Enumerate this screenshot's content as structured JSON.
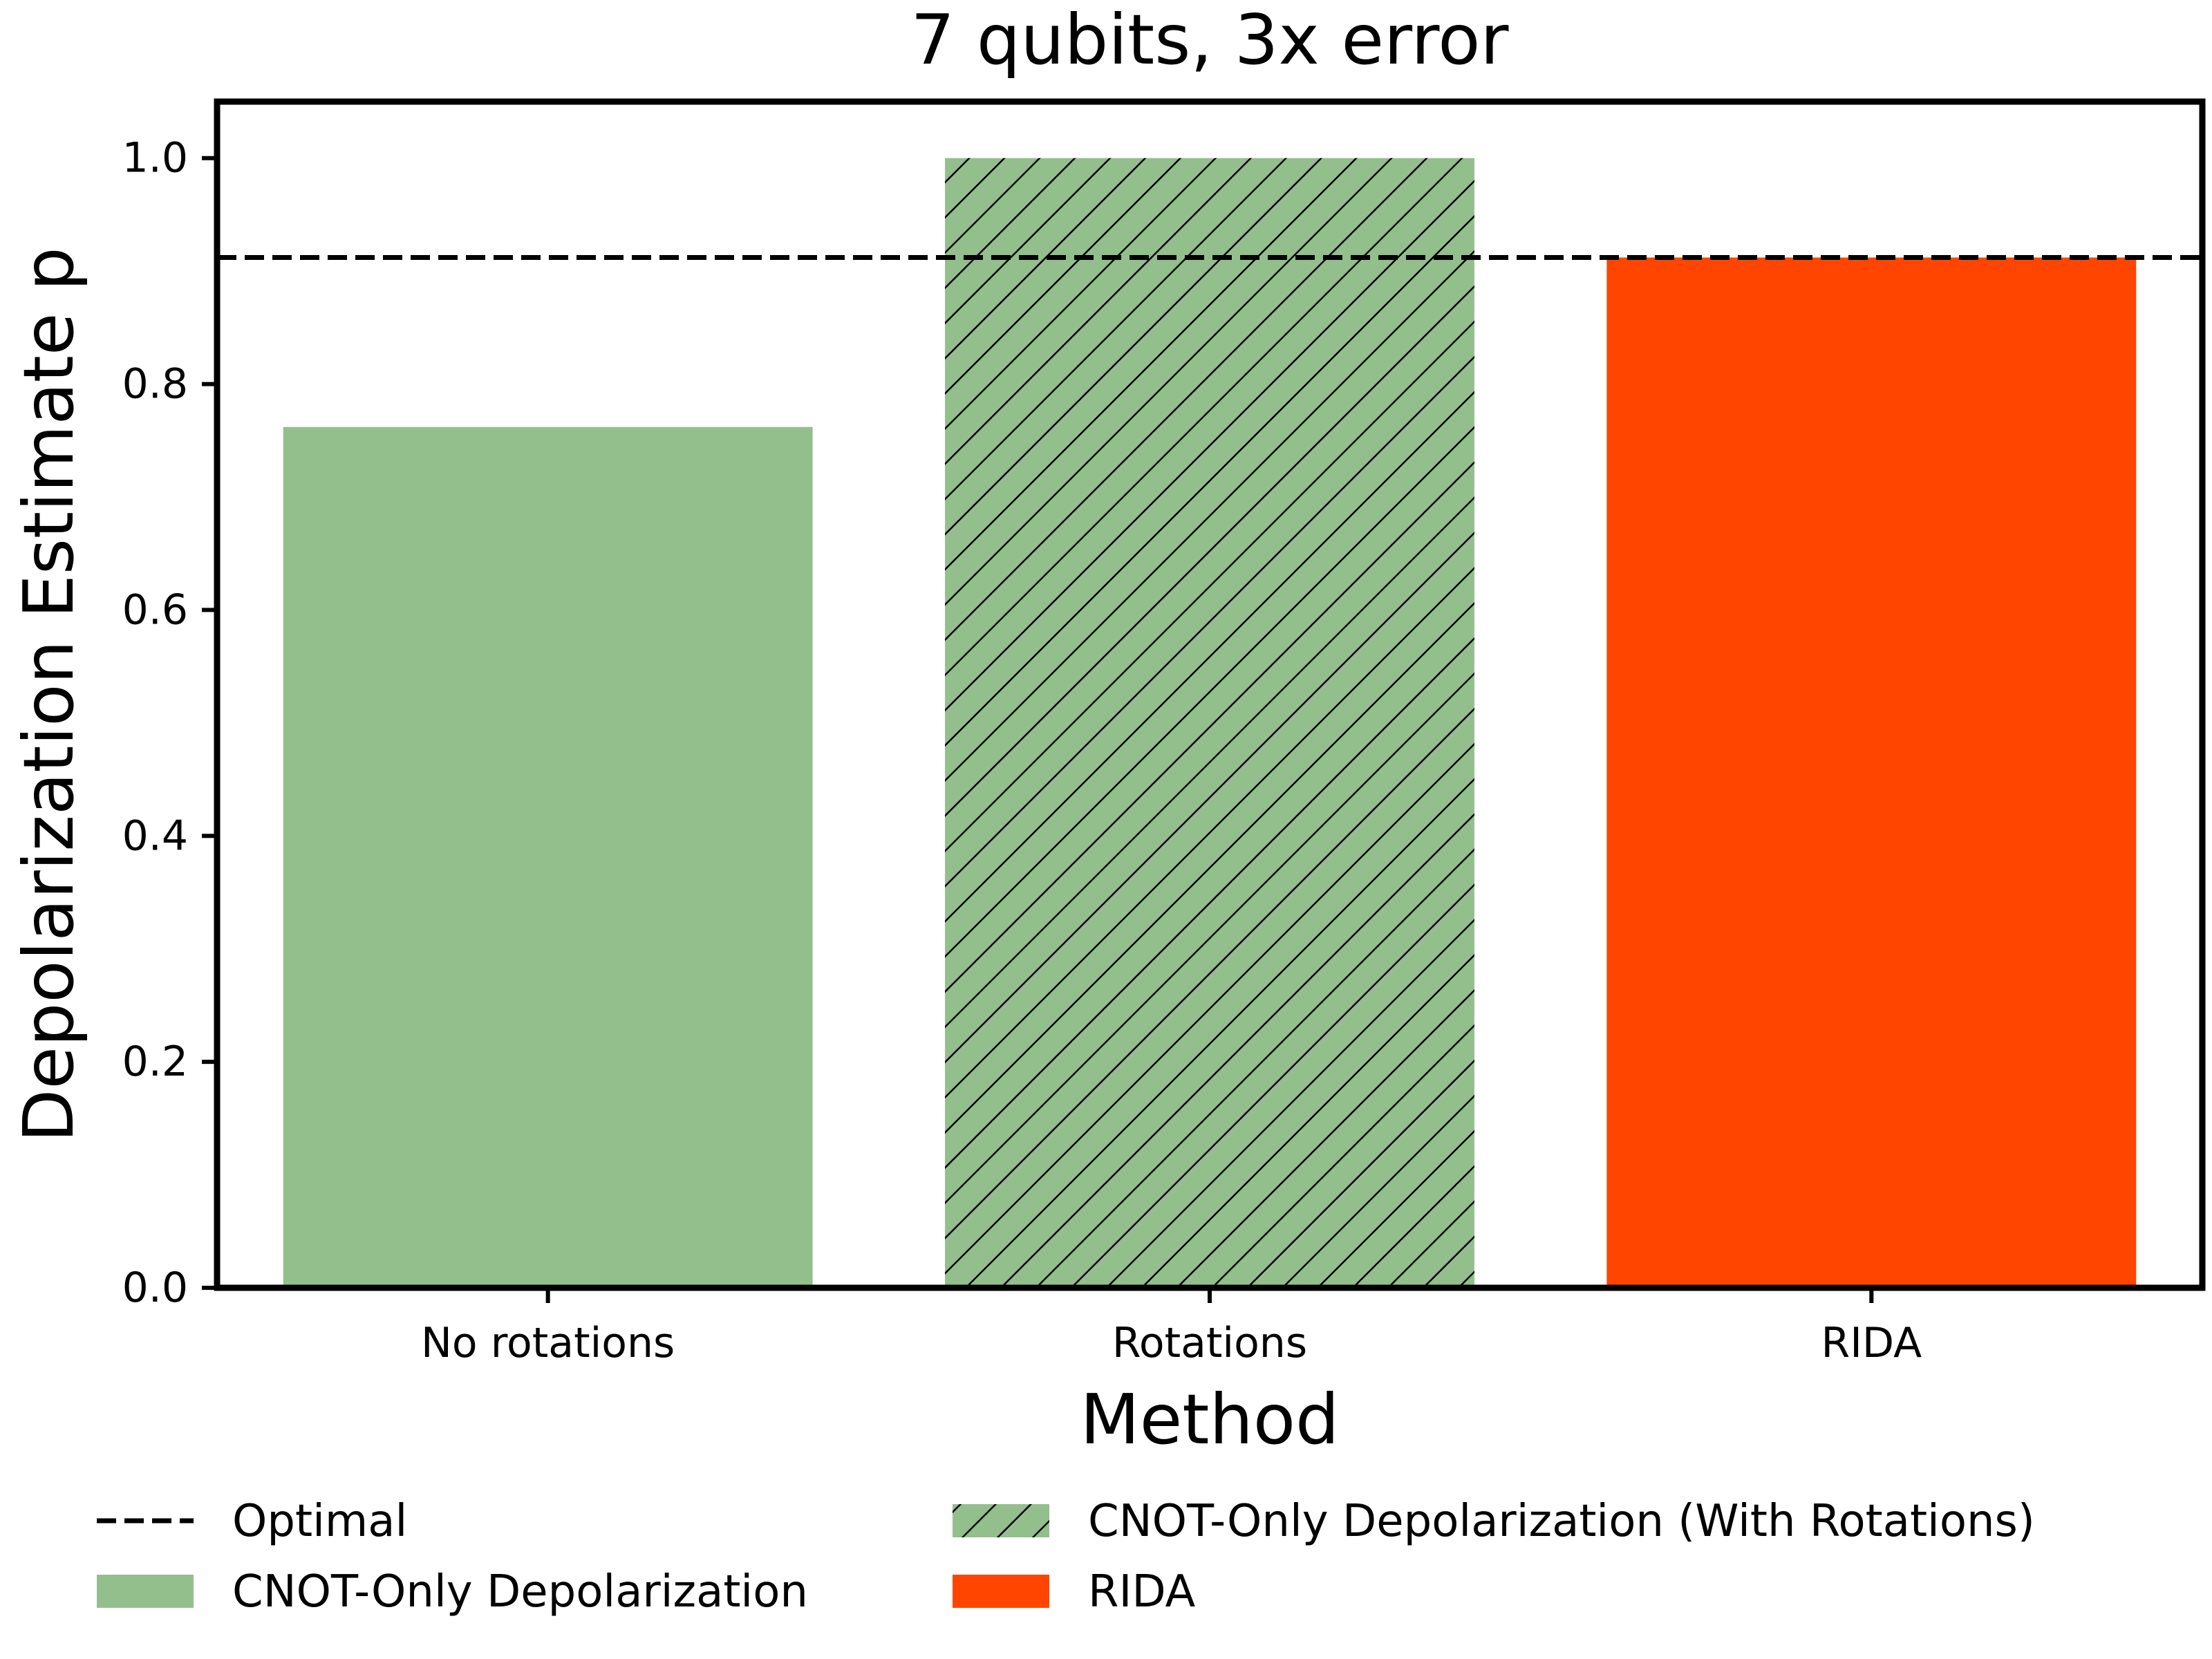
{
  "chart_data": {
    "type": "bar",
    "title": "7 qubits, 3x error",
    "xlabel": "Method",
    "ylabel": "Depolarization Estimate p",
    "categories": [
      "No rotations",
      "Rotations",
      "RIDA"
    ],
    "bars": [
      {
        "category": "No rotations",
        "value": 0.762,
        "series": "CNOT-Only Depolarization",
        "color": "#93bf8d",
        "hatch": false
      },
      {
        "category": "Rotations",
        "value": 1.0,
        "series": "CNOT-Only Depolarization (With Rotations)",
        "color": "#93bf8d",
        "hatch": true
      },
      {
        "category": "RIDA",
        "value": 0.912,
        "series": "RIDA",
        "color": "#ff4500",
        "hatch": false
      }
    ],
    "reference_line": {
      "name": "Optimal",
      "value": 0.912,
      "style": "dashed",
      "color": "#000000"
    },
    "ylim": [
      0,
      1.05
    ],
    "yticks": [
      0.0,
      0.2,
      0.4,
      0.6,
      0.8,
      1.0
    ],
    "ytick_labels": [
      "0.0",
      "0.2",
      "0.4",
      "0.6",
      "0.8",
      "1.0"
    ],
    "grid": false,
    "legend": {
      "placement": "bottom",
      "columns": 2,
      "entries": [
        {
          "label": "Optimal",
          "kind": "dashed-line",
          "color": "#000000"
        },
        {
          "label": "CNOT-Only Depolarization",
          "kind": "patch",
          "color": "#93bf8d",
          "hatch": false
        },
        {
          "label": "CNOT-Only Depolarization (With Rotations)",
          "kind": "patch",
          "color": "#93bf8d",
          "hatch": true
        },
        {
          "label": "RIDA",
          "kind": "patch",
          "color": "#ff4500",
          "hatch": false
        }
      ]
    }
  }
}
